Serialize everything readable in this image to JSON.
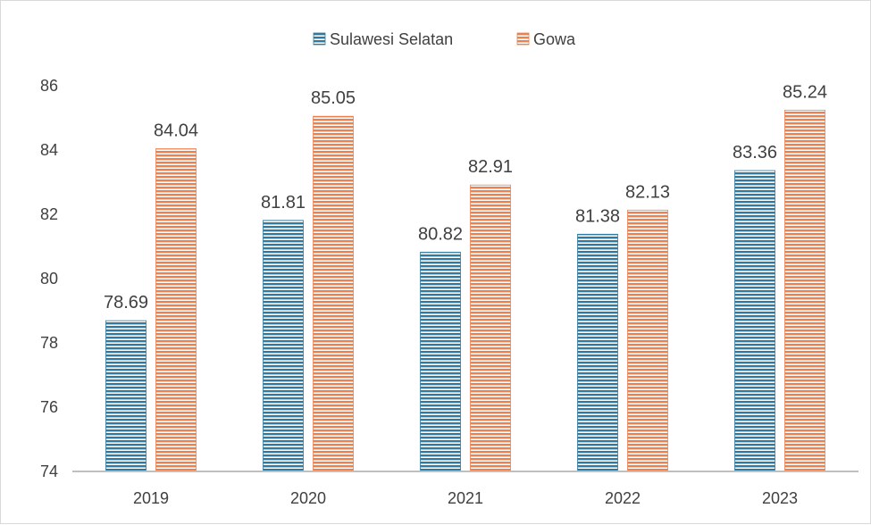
{
  "chart_data": {
    "type": "bar",
    "categories": [
      "2019",
      "2020",
      "2021",
      "2022",
      "2023"
    ],
    "series": [
      {
        "name": "Sulawesi Selatan",
        "color": "#2e7aa0",
        "values": [
          78.69,
          81.81,
          80.82,
          81.38,
          83.36
        ]
      },
      {
        "name": "Gowa",
        "color": "#f07f4e",
        "values": [
          84.04,
          85.05,
          82.91,
          82.13,
          85.24
        ]
      }
    ],
    "ylim": [
      74,
      86
    ],
    "yticks": [
      74,
      76,
      78,
      80,
      82,
      84,
      86
    ],
    "legend_position": "top-center",
    "grid": false,
    "bar_fill": "horizontal-stripes"
  }
}
